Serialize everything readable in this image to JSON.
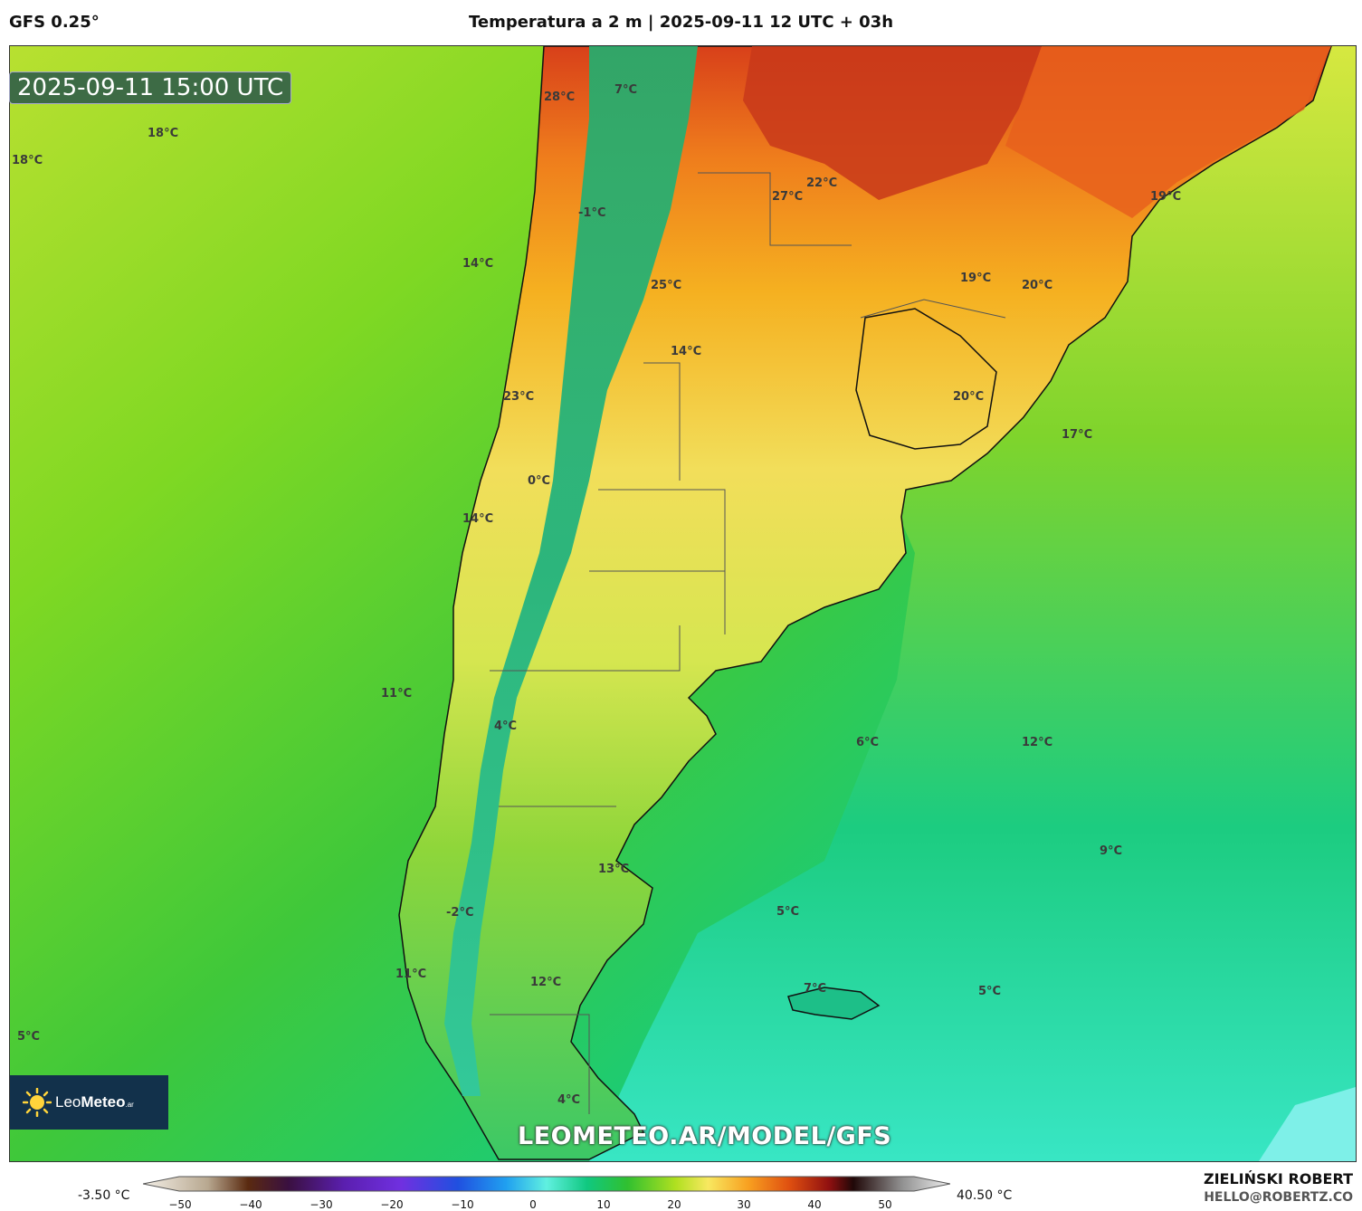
{
  "header": {
    "model": "GFS 0.25°",
    "title": "Temperatura a 2 m | 2025-09-11 12 UTC + 03h"
  },
  "map": {
    "timestamp": "2025-09-11 15:00 UTC",
    "watermark": "LEOMETEO.AR/MODEL/GFS",
    "logo": {
      "name_light": "Leo",
      "name_bold": "Meteo",
      "suffix": ".ar"
    },
    "labels": [
      "18°C",
      "18°C",
      "28°C",
      "7°C",
      "14°C",
      "-1°C",
      "27°C",
      "22°C",
      "19°C",
      "25°C",
      "19°C",
      "20°C",
      "14°C",
      "23°C",
      "20°C",
      "17°C",
      "0°C",
      "14°C",
      "11°C",
      "4°C",
      "6°C",
      "12°C",
      "9°C",
      "13°C",
      "5°C",
      "-2°C",
      "11°C",
      "12°C",
      "7°C",
      "5°C",
      "5°C",
      "4°C"
    ]
  },
  "colorbar": {
    "min_label": "-3.50 °C",
    "max_label": "40.50 °C",
    "ticks": [
      "−50",
      "−40",
      "−30",
      "−20",
      "−10",
      "0",
      "10",
      "20",
      "30",
      "40",
      "50"
    ]
  },
  "footer": {
    "author": "ZIELIŃSKI ROBERT",
    "email": "HELLO@ROBERTZ.CO"
  },
  "colors": {
    "ocean_warm": "#b8e030",
    "ocean_mid": "#4fcc3a",
    "ocean_cool": "#1fcf7a",
    "ocean_cold": "#3de8c8",
    "land_hot": "#d8401a",
    "land_warm": "#f5a11a",
    "land_mild": "#f2e060",
    "andes": "#1aa870",
    "logo_bg": "#12314b",
    "timestamp_bg": "#3d6b45"
  }
}
